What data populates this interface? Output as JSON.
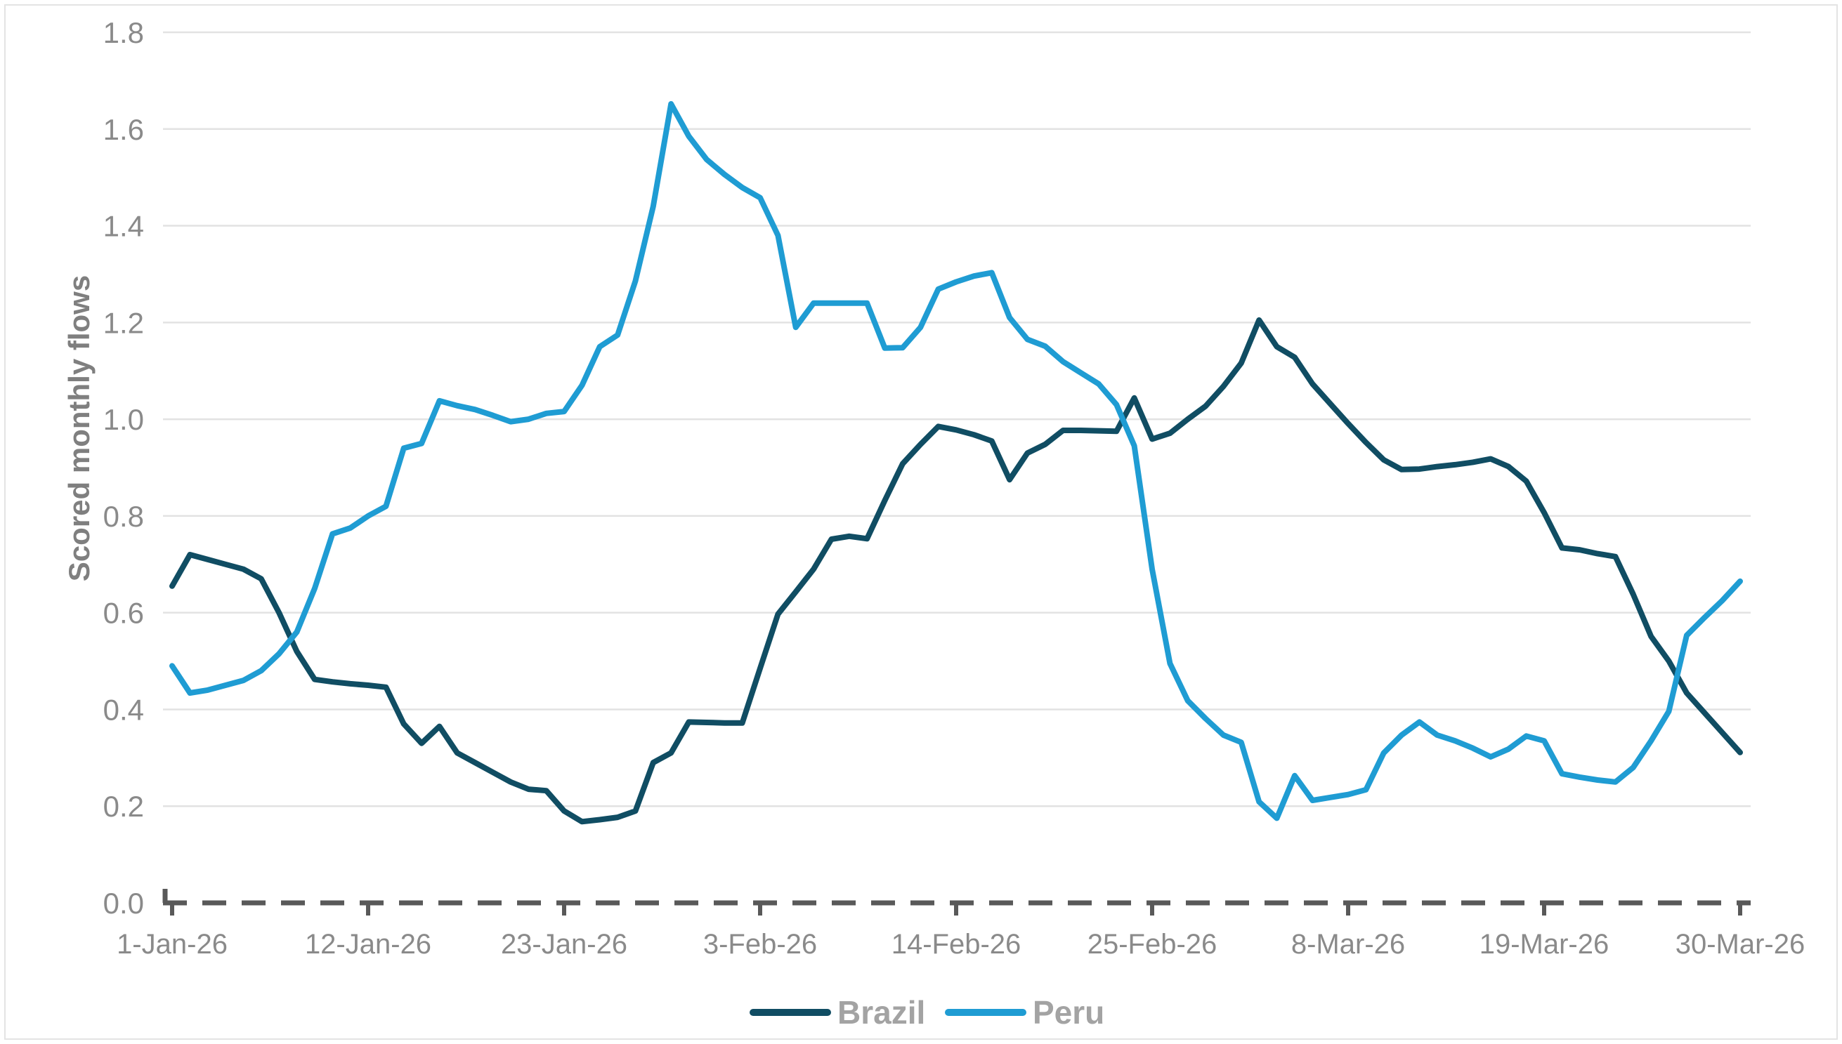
{
  "chart_data": {
    "type": "line",
    "title": "",
    "xlabel": "",
    "ylabel": "Scored monthly flows",
    "ylim": [
      0,
      1.8
    ],
    "y_ticks": [
      0.0,
      0.2,
      0.4,
      0.6,
      0.8,
      1.0,
      1.2,
      1.4,
      1.6,
      1.8
    ],
    "grid": true,
    "legend_position": "bottom-center",
    "x_tick_labels": [
      "1-Jan-26",
      "12-Jan-26",
      "23-Jan-26",
      "3-Feb-26",
      "14-Feb-26",
      "25-Feb-26",
      "8-Mar-26",
      "19-Mar-26",
      "30-Mar-26"
    ],
    "x_tick_indices": [
      0,
      11,
      22,
      33,
      44,
      55,
      66,
      77,
      88
    ],
    "n_points": 89,
    "x_start_label": "1-Jan-26",
    "x_end_label": "30-Mar-26",
    "series": [
      {
        "name": "Brazil",
        "color": "#104d63",
        "values": [
          0.655,
          0.72,
          0.71,
          0.7,
          0.69,
          0.67,
          0.6,
          0.52,
          0.462,
          0.457,
          0.453,
          0.45,
          0.446,
          0.37,
          0.33,
          0.365,
          0.31,
          0.29,
          0.27,
          0.25,
          0.235,
          0.232,
          0.19,
          0.168,
          0.172,
          0.177,
          0.19,
          0.29,
          0.31,
          0.374,
          0.373,
          0.372,
          0.372,
          0.485,
          0.597,
          0.643,
          0.69,
          0.752,
          0.758,
          0.753,
          0.832,
          0.908,
          0.948,
          0.985,
          0.978,
          0.968,
          0.955,
          0.875,
          0.93,
          0.948,
          0.977,
          0.977,
          0.976,
          0.975,
          1.044,
          0.959,
          0.971,
          1.0,
          1.027,
          1.068,
          1.116,
          1.205,
          1.15,
          1.128,
          1.073,
          1.032,
          0.991,
          0.952,
          0.916,
          0.896,
          0.897,
          0.902,
          0.906,
          0.911,
          0.918,
          0.902,
          0.872,
          0.807,
          0.734,
          0.73,
          0.722,
          0.716,
          0.638,
          0.551,
          0.5,
          0.434,
          0.393,
          0.352,
          0.311
        ]
      },
      {
        "name": "Peru",
        "color": "#1f9cd3",
        "values": [
          0.49,
          0.434,
          0.44,
          0.45,
          0.46,
          0.48,
          0.515,
          0.56,
          0.65,
          0.763,
          0.775,
          0.8,
          0.82,
          0.94,
          0.95,
          1.038,
          1.028,
          1.02,
          1.008,
          0.995,
          1.0,
          1.012,
          1.016,
          1.07,
          1.15,
          1.174,
          1.286,
          1.44,
          1.652,
          1.585,
          1.537,
          1.506,
          1.479,
          1.458,
          1.38,
          1.19,
          1.24,
          1.24,
          1.24,
          1.24,
          1.147,
          1.148,
          1.19,
          1.269,
          1.284,
          1.296,
          1.303,
          1.21,
          1.165,
          1.151,
          1.119,
          1.096,
          1.073,
          1.03,
          0.945,
          0.69,
          0.495,
          0.418,
          0.381,
          0.347,
          0.332,
          0.209,
          0.175,
          0.263,
          0.212,
          0.218,
          0.224,
          0.234,
          0.31,
          0.347,
          0.374,
          0.347,
          0.335,
          0.32,
          0.302,
          0.318,
          0.345,
          0.335,
          0.267,
          0.26,
          0.254,
          0.25,
          0.28,
          0.335,
          0.396,
          0.553,
          0.59,
          0.625,
          0.665
        ]
      }
    ],
    "axis_colors": {
      "gridline": "#e2e2e2",
      "x_axis_dash": "#595959",
      "tick_label": "#8a8a8a"
    }
  },
  "legend": {
    "brazil_label": "Brazil",
    "peru_label": "Peru"
  },
  "y_axis": {
    "title": "Scored monthly flows"
  }
}
